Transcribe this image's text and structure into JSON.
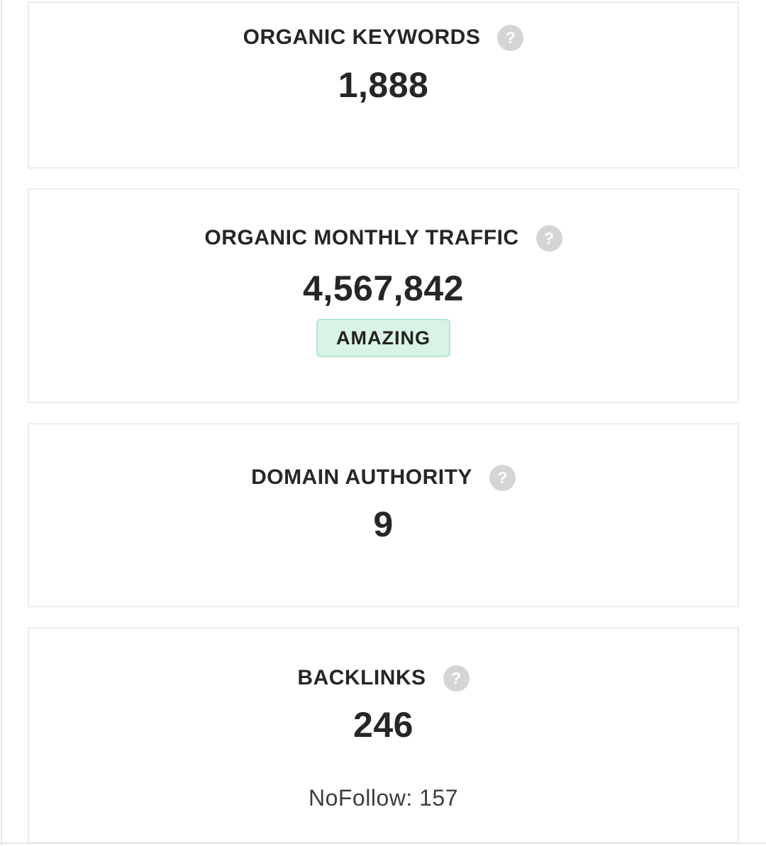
{
  "section": {
    "cards": [
      {
        "title": "ORGANIC KEYWORDS",
        "value": "1,888"
      },
      {
        "title": "ORGANIC MONTHLY TRAFFIC",
        "value": "4,567,842",
        "badge": "AMAZING"
      },
      {
        "title": "DOMAIN AUTHORITY",
        "value": "9"
      },
      {
        "title": "BACKLINKS",
        "value": "246",
        "sub_label": "NoFollow: 157"
      }
    ]
  },
  "icons": {
    "help": "?"
  },
  "colors": {
    "text": "#262626",
    "card_border": "#ececec",
    "divider": "#e9e9e9",
    "help_icon_bg": "#d5d5d5",
    "help_icon_glyph": "#ffffff",
    "badge_bg": "#d9f4e4",
    "badge_border": "#b2e8cc",
    "sub_text": "#3d3d3d"
  }
}
